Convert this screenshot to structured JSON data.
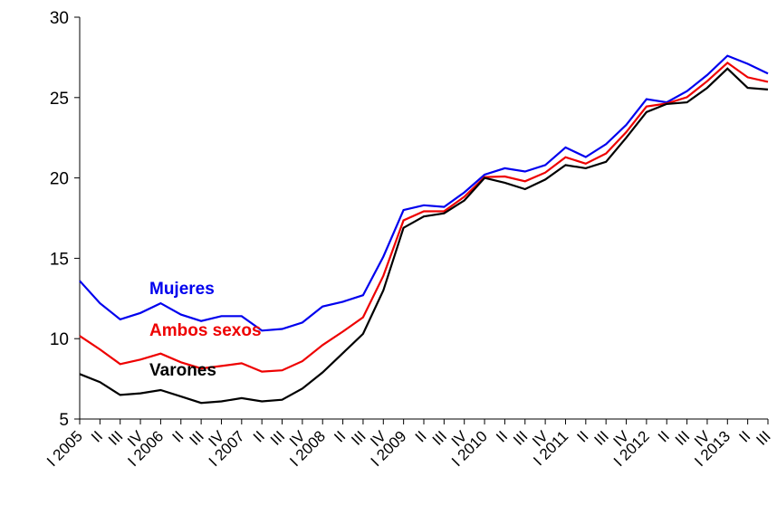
{
  "chart_data": {
    "type": "line",
    "categories": [
      "I 2005",
      "II",
      "III",
      "IV",
      "I 2006",
      "II",
      "III",
      "IV",
      "I 2007",
      "II",
      "III",
      "IV",
      "I 2008",
      "II",
      "III",
      "IV",
      "I 2009",
      "II",
      "III",
      "IV",
      "I 2010",
      "II",
      "III",
      "IV",
      "I 2011",
      "II",
      "III",
      "IV",
      "I 2012",
      "II",
      "III",
      "IV",
      "I 2013",
      "II",
      "III"
    ],
    "series": [
      {
        "name": "Mujeres",
        "color": "#0000ee",
        "values": [
          13.6,
          12.2,
          11.2,
          11.6,
          12.2,
          11.5,
          11.1,
          11.4,
          11.4,
          10.5,
          10.6,
          11.0,
          12.0,
          12.3,
          12.7,
          15.1,
          18.0,
          18.3,
          18.2,
          19.1,
          20.2,
          20.6,
          20.4,
          20.8,
          21.9,
          21.3,
          22.1,
          23.3,
          24.9,
          24.7,
          25.4,
          26.4,
          27.6,
          27.1,
          26.5
        ]
      },
      {
        "name": "Ambos sexos",
        "color": "#ee0000",
        "values": [
          10.17,
          9.33,
          8.42,
          8.7,
          9.07,
          8.53,
          8.15,
          8.3,
          8.47,
          7.95,
          8.03,
          8.6,
          9.6,
          10.44,
          11.33,
          13.91,
          17.36,
          17.92,
          17.93,
          18.83,
          20.05,
          20.09,
          19.79,
          20.33,
          21.29,
          20.89,
          21.52,
          22.85,
          24.44,
          24.63,
          25.02,
          26.02,
          27.16,
          26.26,
          25.98
        ]
      },
      {
        "name": "Varones",
        "color": "#000000",
        "values": [
          7.8,
          7.3,
          6.5,
          6.6,
          6.8,
          6.4,
          6.0,
          6.1,
          6.3,
          6.1,
          6.2,
          6.9,
          7.9,
          9.1,
          10.3,
          13.0,
          16.9,
          17.6,
          17.8,
          18.6,
          20.0,
          19.7,
          19.3,
          19.9,
          20.8,
          20.6,
          21.0,
          22.5,
          24.1,
          24.6,
          24.7,
          25.6,
          26.8,
          25.6,
          25.5
        ]
      }
    ],
    "ylim": [
      5,
      30
    ],
    "yticks": [
      5,
      10,
      15,
      20,
      25,
      30
    ],
    "grid": false
  }
}
